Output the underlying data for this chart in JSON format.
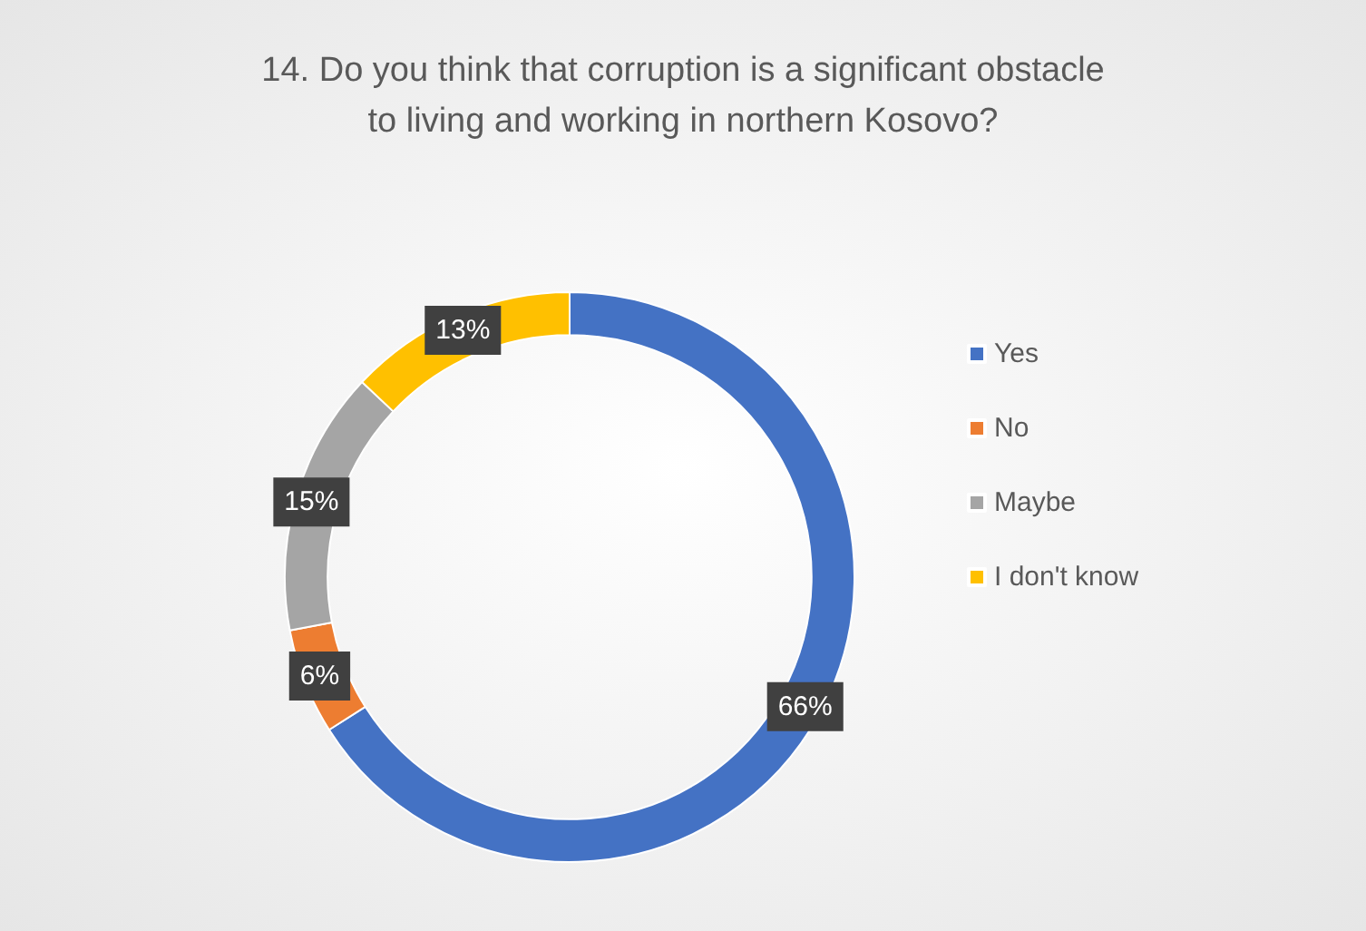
{
  "chart_data": {
    "type": "donut",
    "title": "14. Do you think that corruption is a significant obstacle\nto living and working in northern Kosovo?",
    "categories": [
      "Yes",
      "No",
      "Maybe",
      "I don't know"
    ],
    "values": [
      66,
      6,
      15,
      13
    ],
    "value_labels": [
      "66%",
      "6%",
      "15%",
      "13%"
    ],
    "colors": [
      "#4472c4",
      "#ed7d31",
      "#a5a5a5",
      "#ffc000"
    ],
    "legend": "right"
  }
}
